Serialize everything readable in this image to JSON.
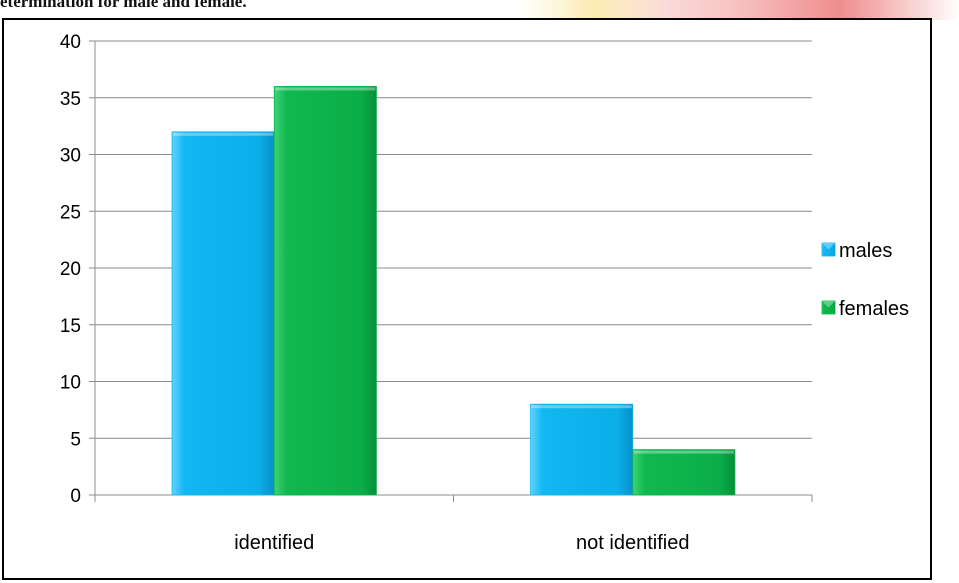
{
  "caption": "etermination for male and female.",
  "chart_data": {
    "type": "bar",
    "categories": [
      "identified",
      "not identified"
    ],
    "series": [
      {
        "name": "males",
        "values": [
          32,
          8
        ],
        "color": "#0FB4F0"
      },
      {
        "name": "females",
        "values": [
          36,
          4
        ],
        "color": "#0BB44C"
      }
    ],
    "ylim": [
      0,
      40
    ],
    "yticks": [
      "0",
      "5",
      "10",
      "15",
      "20",
      "25",
      "30",
      "35",
      "40"
    ],
    "grid": true,
    "legend_position": "right"
  }
}
